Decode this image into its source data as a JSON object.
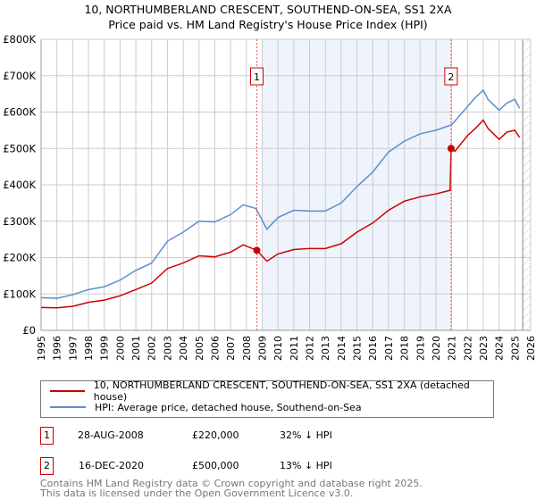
{
  "chart_data": {
    "type": "line",
    "title": "10, NORTHUMBERLAND CRESCENT, SOUTHEND-ON-SEA, SS1 2XA",
    "subtitle": "Price paid vs. HM Land Registry's House Price Index (HPI)",
    "xlim": [
      1995,
      2026
    ],
    "ylim": [
      0,
      800000
    ],
    "xticks": [
      "1995",
      "1996",
      "1997",
      "1998",
      "1999",
      "2000",
      "2001",
      "2002",
      "2003",
      "2004",
      "2005",
      "2006",
      "2007",
      "2008",
      "2009",
      "2010",
      "2011",
      "2012",
      "2013",
      "2014",
      "2015",
      "2016",
      "2017",
      "2018",
      "2019",
      "2020",
      "2021",
      "2022",
      "2023",
      "2024",
      "2025",
      "2026"
    ],
    "yticks": [
      {
        "v": 0,
        "l": "£0"
      },
      {
        "v": 100000,
        "l": "£100K"
      },
      {
        "v": 200000,
        "l": "£200K"
      },
      {
        "v": 300000,
        "l": "£300K"
      },
      {
        "v": 400000,
        "l": "£400K"
      },
      {
        "v": 500000,
        "l": "£500K"
      },
      {
        "v": 600000,
        "l": "£600K"
      },
      {
        "v": 700000,
        "l": "£700K"
      },
      {
        "v": 800000,
        "l": "£800K"
      }
    ],
    "grid": true,
    "series": [
      {
        "name": "10, NORTHUMBERLAND CRESCENT, SOUTHEND-ON-SEA, SS1 2XA (detached house)",
        "color": "#cc0000",
        "x": [
          1995,
          1996,
          1997,
          1998,
          1999,
          2000,
          2001,
          2002,
          2003,
          2004,
          2005,
          2006,
          2007,
          2007.8,
          2008.66,
          2009.3,
          2010,
          2011,
          2012,
          2013,
          2014,
          2015,
          2016,
          2017,
          2018,
          2019,
          2020,
          2020.9,
          2020.96,
          2021.2,
          2022,
          2022.5,
          2023,
          2023.3,
          2024,
          2024.5,
          2025,
          2025.3
        ],
        "y": [
          63000,
          62000,
          66000,
          77000,
          83000,
          95000,
          112000,
          130000,
          170000,
          185000,
          205000,
          202000,
          215000,
          235000,
          220000,
          190000,
          210000,
          222000,
          225000,
          225000,
          238000,
          270000,
          295000,
          330000,
          355000,
          367000,
          375000,
          385000,
          500000,
          492000,
          535000,
          555000,
          578000,
          555000,
          525000,
          545000,
          550000,
          530000
        ]
      },
      {
        "name": "HPI: Average price, detached house, Southend-on-Sea",
        "color": "#5b8fd0",
        "x": [
          1995,
          1996,
          1997,
          1998,
          1999,
          2000,
          2001,
          2002,
          2003,
          2004,
          2005,
          2006,
          2007,
          2007.8,
          2008.6,
          2009.3,
          2010,
          2011,
          2012,
          2013,
          2014,
          2015,
          2016,
          2017,
          2018,
          2019,
          2020,
          2021,
          2022,
          2022.5,
          2023,
          2023.3,
          2024,
          2024.5,
          2025,
          2025.3
        ],
        "y": [
          90000,
          88000,
          98000,
          112000,
          120000,
          138000,
          165000,
          185000,
          245000,
          270000,
          300000,
          298000,
          318000,
          345000,
          335000,
          278000,
          310000,
          330000,
          328000,
          328000,
          350000,
          395000,
          435000,
          490000,
          520000,
          540000,
          550000,
          565000,
          615000,
          640000,
          660000,
          635000,
          605000,
          625000,
          635000,
          610000
        ]
      }
    ],
    "sales": [
      {
        "label": "1",
        "x": 2008.66,
        "y": 220000,
        "date": "28-AUG-2008",
        "price": "£220,000",
        "hpi": "32% ↓ HPI"
      },
      {
        "label": "2",
        "x": 2020.96,
        "y": 500000,
        "date": "16-DEC-2020",
        "price": "£500,000",
        "hpi": "13% ↓ HPI"
      }
    ],
    "forecast_from": 2025.5
  },
  "footer": {
    "line1": "Contains HM Land Registry data © Crown copyright and database right 2025.",
    "line2": "This data is licensed under the Open Government Licence v3.0."
  }
}
